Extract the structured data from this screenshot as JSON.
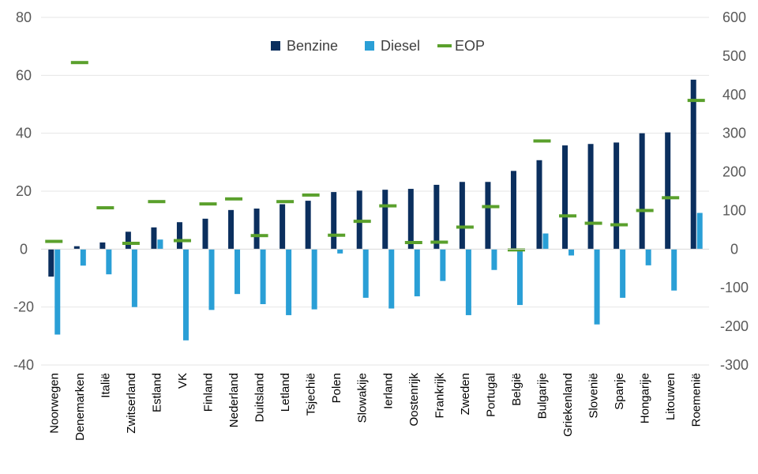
{
  "chart_data": {
    "type": "bar",
    "categories": [
      "Noorwegen",
      "Denemarken",
      "Italië",
      "Zwitserland",
      "Estland",
      "VK",
      "Finland",
      "Nederland",
      "Duitsland",
      "Letland",
      "Tsjechië",
      "Polen",
      "Slowakije",
      "Ierland",
      "Oostenrijk",
      "Frankrijk",
      "Zweden",
      "Portugal",
      "België",
      "Bulgarije",
      "Griekenland",
      "Slovenië",
      "Spanje",
      "Hongarije",
      "Litouwen",
      "Roemenië"
    ],
    "series": [
      {
        "name": "Benzine",
        "axis": "left",
        "color": "#0b2f5e",
        "values": [
          -9.5,
          1,
          2.3,
          6,
          7.5,
          9.3,
          10.5,
          13.5,
          14,
          15.5,
          16.7,
          19.7,
          20.2,
          20.5,
          20.8,
          22.2,
          23.2,
          23.2,
          27,
          30.7,
          35.8,
          36.3,
          36.8,
          40,
          40.3,
          58.5
        ]
      },
      {
        "name": "Diesel",
        "axis": "left",
        "color": "#2a9fd6",
        "values": [
          -29.5,
          -5.7,
          -8.7,
          -20,
          3.3,
          -31.5,
          -21,
          -15.5,
          -19,
          -22.8,
          -20.8,
          -1.5,
          -16.8,
          -20.5,
          -16.3,
          -11,
          -22.8,
          -7.2,
          -19.3,
          5.4,
          -2.2,
          -26,
          -16.8,
          -5.6,
          -14.3,
          12.5
        ]
      },
      {
        "name": "EOP",
        "axis": "right",
        "color": "#5aa02c",
        "values": [
          20,
          483,
          107,
          15,
          123,
          22,
          117,
          130,
          35,
          123,
          140,
          36,
          72,
          112,
          17,
          18,
          57,
          110,
          -2,
          280,
          86,
          67,
          63,
          100,
          133,
          385
        ]
      }
    ],
    "y_left": {
      "min": -40,
      "max": 80,
      "ticks": [
        -40,
        -20,
        0,
        20,
        40,
        60,
        80
      ]
    },
    "y_right": {
      "min": -300,
      "max": 600,
      "ticks": [
        -300,
        -200,
        -100,
        0,
        100,
        200,
        300,
        400,
        500,
        600
      ]
    },
    "grid": true,
    "legend_position": "top"
  }
}
